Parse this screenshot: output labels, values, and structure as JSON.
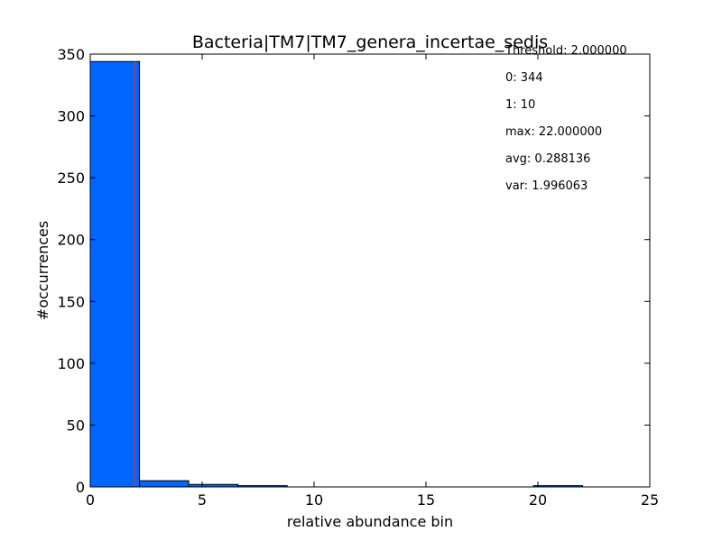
{
  "chart_data": {
    "type": "bar",
    "title": "Bacteria|TM7|TM7_genera_incertae_sedis",
    "xlabel": "relative abundance bin",
    "ylabel": "#occurrences",
    "xlim": [
      0,
      25
    ],
    "ylim": [
      0,
      350
    ],
    "xticks": [
      0,
      5,
      10,
      15,
      20,
      25
    ],
    "yticks": [
      0,
      50,
      100,
      150,
      200,
      250,
      300,
      350
    ],
    "bar_color": "#0066ff",
    "threshold_line_color": "#cc3333",
    "threshold": 2.0,
    "bins": [
      {
        "x0": 0.0,
        "x1": 2.2,
        "count": 344
      },
      {
        "x0": 2.2,
        "x1": 4.4,
        "count": 5
      },
      {
        "x0": 4.4,
        "x1": 6.6,
        "count": 2
      },
      {
        "x0": 6.6,
        "x1": 8.8,
        "count": 1
      },
      {
        "x0": 8.8,
        "x1": 11.0,
        "count": 0
      },
      {
        "x0": 11.0,
        "x1": 13.2,
        "count": 0
      },
      {
        "x0": 13.2,
        "x1": 15.4,
        "count": 0
      },
      {
        "x0": 15.4,
        "x1": 17.6,
        "count": 0
      },
      {
        "x0": 17.6,
        "x1": 19.8,
        "count": 0
      },
      {
        "x0": 19.8,
        "x1": 22.0,
        "count": 1
      }
    ],
    "annotations": [
      "Threshold: 2.000000",
      "0: 344",
      "1: 10",
      "max: 22.000000",
      "avg: 0.288136",
      "var: 1.996063"
    ],
    "grid": false
  }
}
